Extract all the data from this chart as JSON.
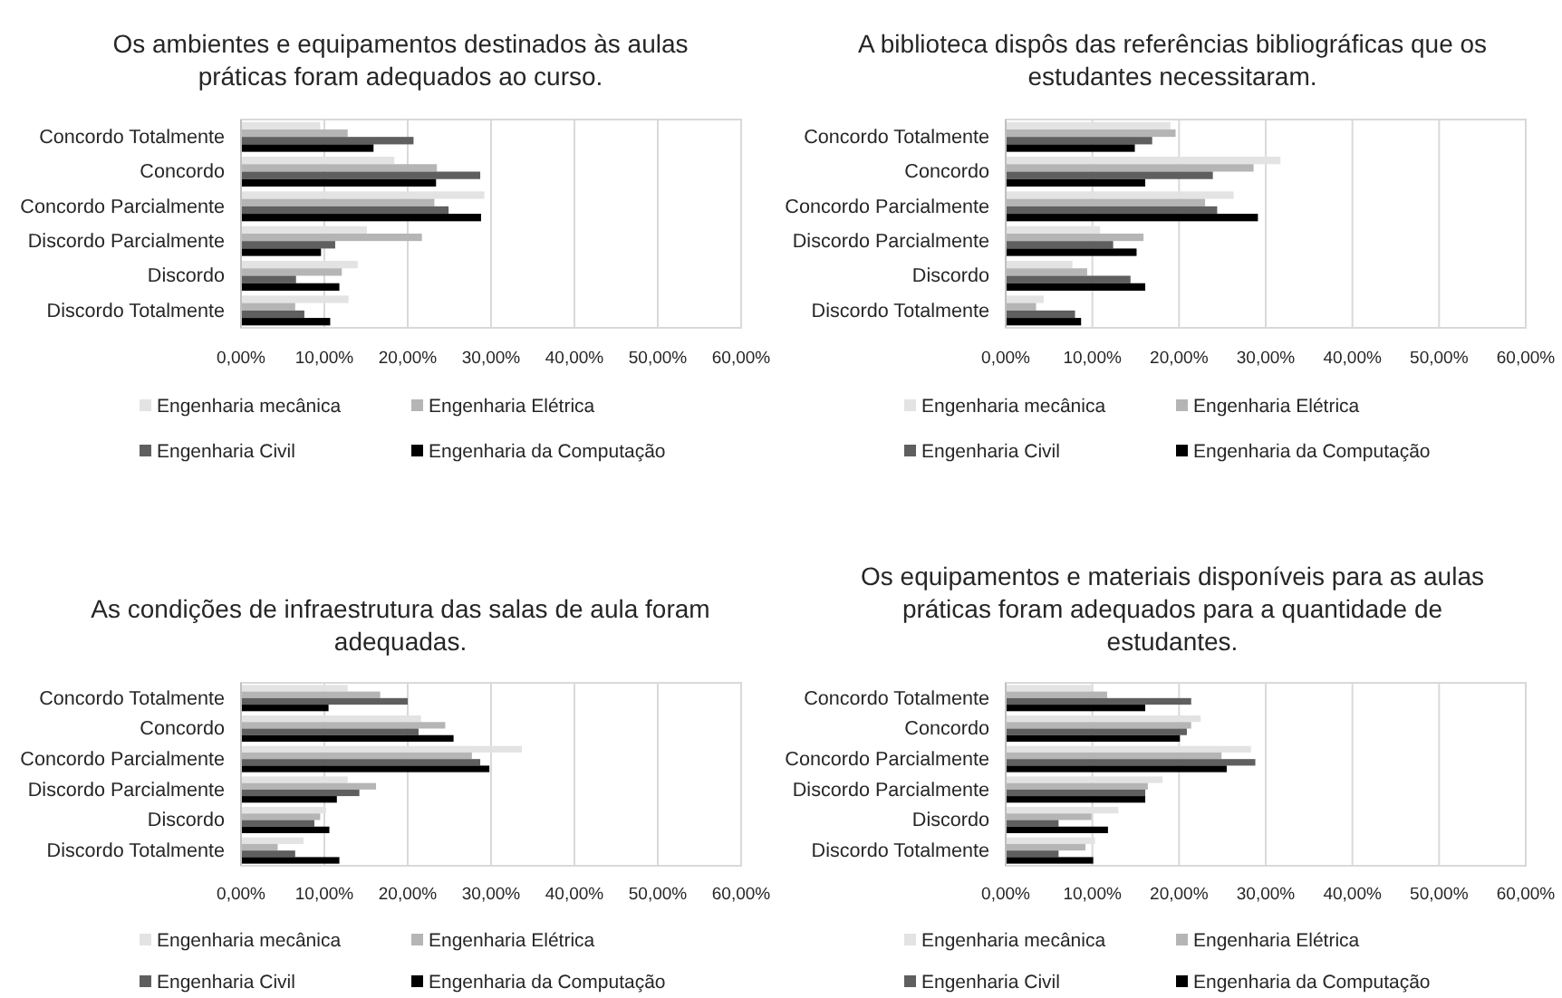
{
  "chart_data": [
    {
      "type": "bar",
      "orientation": "horizontal",
      "title": "Os ambientes e equipamentos destinados às aulas práticas foram adequados ao curso.",
      "categories": [
        "Concordo Totalmente",
        "Concordo",
        "Concordo Parcialmente",
        "Discordo Parcialmente",
        "Discordo",
        "Discordo Totalmente"
      ],
      "series": [
        {
          "name": "Engenharia mecânica",
          "color": "#e3e3e3",
          "values": [
            9.5,
            18.4,
            29.2,
            15.1,
            14.0,
            12.9
          ]
        },
        {
          "name": "Engenharia Elétrica",
          "color": "#b5b5b5",
          "values": [
            12.8,
            23.5,
            23.2,
            21.7,
            12.1,
            6.5
          ]
        },
        {
          "name": "Engenharia Civil",
          "color": "#5f5f5f",
          "values": [
            20.7,
            28.7,
            24.9,
            11.3,
            6.6,
            7.6
          ]
        },
        {
          "name": "Engenharia da Computação",
          "color": "#000000",
          "values": [
            15.9,
            23.4,
            28.8,
            9.6,
            11.8,
            10.7
          ]
        }
      ],
      "xlim": [
        0,
        60
      ],
      "xticks": [
        {
          "value": 0,
          "label": "0,00%"
        },
        {
          "value": 10,
          "label": "10,00%"
        },
        {
          "value": 20,
          "label": "20,00%"
        },
        {
          "value": 30,
          "label": "30,00%"
        },
        {
          "value": 40,
          "label": "40,00%"
        },
        {
          "value": 50,
          "label": "50,00%"
        },
        {
          "value": 60,
          "label": "60,00%"
        }
      ],
      "grid": "x",
      "legend": "bottom"
    },
    {
      "type": "bar",
      "orientation": "horizontal",
      "title": "A biblioteca dispôs das referências bibliográficas que os estudantes necessitaram.",
      "categories": [
        "Concordo Totalmente",
        "Concordo",
        "Concordo Parcialmente",
        "Discordo Parcialmente",
        "Discordo",
        "Discordo Totalmente"
      ],
      "series": [
        {
          "name": "Engenharia mecânica",
          "color": "#e3e3e3",
          "values": [
            19.0,
            31.7,
            26.3,
            10.9,
            7.7,
            4.4
          ]
        },
        {
          "name": "Engenharia Elétrica",
          "color": "#b5b5b5",
          "values": [
            19.6,
            28.6,
            23.0,
            15.9,
            9.4,
            3.5
          ]
        },
        {
          "name": "Engenharia Civil",
          "color": "#5f5f5f",
          "values": [
            16.9,
            23.9,
            24.4,
            12.4,
            14.4,
            8.0
          ]
        },
        {
          "name": "Engenharia da Computação",
          "color": "#000000",
          "values": [
            14.9,
            16.1,
            29.1,
            15.1,
            16.1,
            8.7
          ]
        }
      ],
      "xlim": [
        0,
        60
      ],
      "xticks": [
        {
          "value": 0,
          "label": "0,00%"
        },
        {
          "value": 10,
          "label": "10,00%"
        },
        {
          "value": 20,
          "label": "20,00%"
        },
        {
          "value": 30,
          "label": "30,00%"
        },
        {
          "value": 40,
          "label": "40,00%"
        },
        {
          "value": 50,
          "label": "50,00%"
        },
        {
          "value": 60,
          "label": "60,00%"
        }
      ],
      "grid": "x",
      "legend": "bottom"
    },
    {
      "type": "bar",
      "orientation": "horizontal",
      "title": "As condições de infraestrutura das salas de aula foram adequadas.",
      "categories": [
        "Concordo Totalmente",
        "Concordo",
        "Concordo Parcialmente",
        "Discordo Parcialmente",
        "Discordo",
        "Discordo Totalmente"
      ],
      "series": [
        {
          "name": "Engenharia mecânica",
          "color": "#e3e3e3",
          "values": [
            12.8,
            21.6,
            33.7,
            12.8,
            10.2,
            7.5
          ]
        },
        {
          "name": "Engenharia Elétrica",
          "color": "#b5b5b5",
          "values": [
            16.7,
            24.5,
            27.7,
            16.2,
            9.5,
            4.4
          ]
        },
        {
          "name": "Engenharia Civil",
          "color": "#5f5f5f",
          "values": [
            20.0,
            21.3,
            28.7,
            14.2,
            8.8,
            6.5
          ]
        },
        {
          "name": "Engenharia da Computação",
          "color": "#000000",
          "values": [
            10.5,
            25.5,
            29.8,
            11.5,
            10.6,
            11.8
          ]
        }
      ],
      "xlim": [
        0,
        60
      ],
      "xticks": [
        {
          "value": 0,
          "label": "0,00%"
        },
        {
          "value": 10,
          "label": "10,00%"
        },
        {
          "value": 20,
          "label": "20,00%"
        },
        {
          "value": 30,
          "label": "30,00%"
        },
        {
          "value": 40,
          "label": "40,00%"
        },
        {
          "value": 50,
          "label": "50,00%"
        },
        {
          "value": 60,
          "label": "60,00%"
        }
      ],
      "grid": "x",
      "legend": "bottom"
    },
    {
      "type": "bar",
      "orientation": "horizontal",
      "title": "Os equipamentos e materiais disponíveis para as aulas práticas foram adequados para a quantidade de estudantes.",
      "categories": [
        "Concordo Totalmente",
        "Concordo",
        "Concordo Parcialmente",
        "Discordo Parcialmente",
        "Discordo",
        "Discordo Totalmente"
      ],
      "series": [
        {
          "name": "Engenharia mecânica",
          "color": "#e3e3e3",
          "values": [
            10.0,
            22.5,
            28.3,
            18.1,
            13.0,
            10.3
          ]
        },
        {
          "name": "Engenharia Elétrica",
          "color": "#b5b5b5",
          "values": [
            11.7,
            21.4,
            24.9,
            16.4,
            9.9,
            9.2
          ]
        },
        {
          "name": "Engenharia Civil",
          "color": "#5f5f5f",
          "values": [
            21.4,
            20.9,
            28.8,
            16.1,
            6.1,
            6.1
          ]
        },
        {
          "name": "Engenharia da Computação",
          "color": "#000000",
          "values": [
            16.1,
            20.1,
            25.5,
            16.1,
            11.8,
            10.1
          ]
        }
      ],
      "xlim": [
        0,
        60
      ],
      "xticks": [
        {
          "value": 0,
          "label": "0,00%"
        },
        {
          "value": 10,
          "label": "10,00%"
        },
        {
          "value": 20,
          "label": "20,00%"
        },
        {
          "value": 30,
          "label": "30,00%"
        },
        {
          "value": 40,
          "label": "40,00%"
        },
        {
          "value": 50,
          "label": "50,00%"
        },
        {
          "value": 60,
          "label": "60,00%"
        }
      ],
      "grid": "x",
      "legend": "bottom"
    }
  ]
}
